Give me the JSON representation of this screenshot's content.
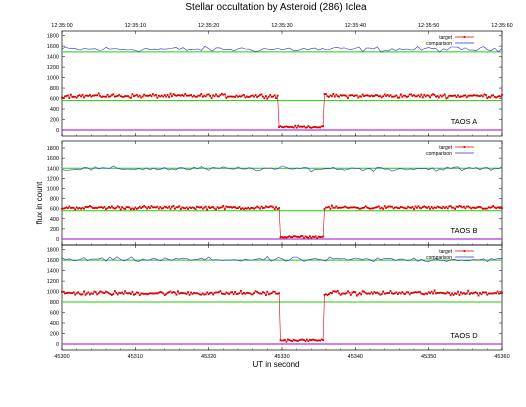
{
  "chart_data": {
    "type": "line",
    "title": "Stellar occultation by Asteroid (286) Iclea",
    "xlabel": "UT in second",
    "ylabel": "flux in count",
    "xlim": [
      45300,
      45360
    ],
    "bottom_ticks": [
      "45300",
      "45310",
      "45320",
      "45330",
      "45340",
      "45350",
      "45360"
    ],
    "top_ticks": [
      "12:35:00",
      "12:35:10",
      "12:35:20",
      "12:35:30",
      "12:35:40",
      "12:35:50",
      "12:35:60"
    ],
    "legend_position": "top-right",
    "colors": {
      "target": "#e00000",
      "comparison": "#2233dd",
      "comparison_level": "#22cc00",
      "target_level": "#22cc00",
      "zero_line": "#a000d0"
    },
    "panels": [
      {
        "label": "TAOS  A",
        "ylim": [
          0,
          1850
        ],
        "yticks": [
          0,
          200,
          400,
          600,
          800,
          1000,
          1200,
          1400,
          1600,
          1800
        ],
        "series": [
          {
            "name": "target",
            "base": 650,
            "noise": 55,
            "drop": [
              45329.5,
              45335.6
            ],
            "drop_level": 60
          },
          {
            "name": "comparison",
            "base": 1540,
            "noise": 75
          }
        ],
        "reference_lines": [
          1490,
          560,
          0
        ]
      },
      {
        "label": "TAOS  B",
        "ylim": [
          0,
          1900
        ],
        "yticks": [
          0,
          200,
          400,
          600,
          800,
          1000,
          1200,
          1400,
          1600,
          1800
        ],
        "series": [
          {
            "name": "target",
            "base": 620,
            "noise": 50,
            "drop": [
              45329.7,
              45335.6
            ],
            "drop_level": 40
          },
          {
            "name": "comparison",
            "base": 1390,
            "noise": 70
          }
        ],
        "reference_lines": [
          1400,
          560,
          0
        ]
      },
      {
        "label": "TAOS  D",
        "ylim": [
          0,
          1850
        ],
        "yticks": [
          0,
          200,
          400,
          600,
          800,
          1000,
          1200,
          1400,
          1600,
          1800
        ],
        "series": [
          {
            "name": "target",
            "base": 970,
            "noise": 60,
            "drop": [
              45329.6,
              45335.6
            ],
            "drop_level": 70
          },
          {
            "name": "comparison",
            "base": 1610,
            "noise": 70
          }
        ],
        "reference_lines": [
          1600,
          800,
          0
        ]
      }
    ]
  }
}
